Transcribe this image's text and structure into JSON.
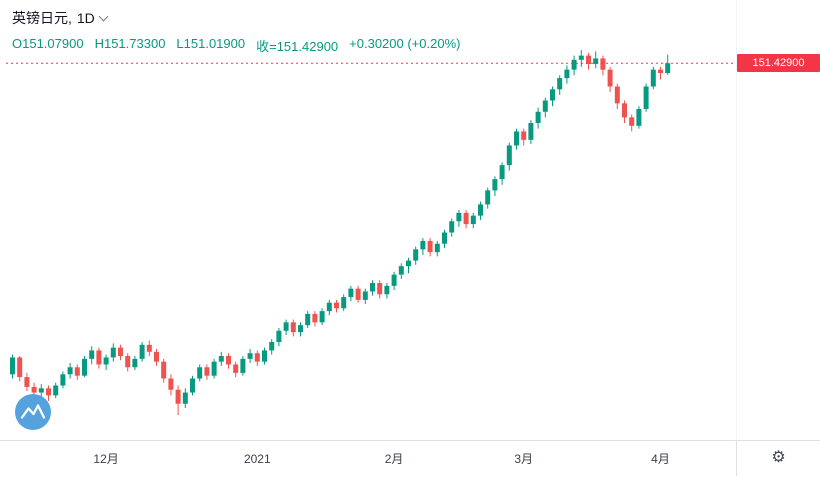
{
  "header": {
    "symbol": "英镑日元",
    "separator": ",",
    "interval": "1D",
    "ohlc_tokens": [
      "O151.07900",
      "H151.73300",
      "L151.01900",
      "收=151.42900",
      "+0.30200 (+0.20%)"
    ]
  },
  "price_axis": {
    "last_price_label": "151.42900"
  },
  "icons": {
    "gear": "⚙"
  },
  "brand": {
    "logo_bg": "#54a3de",
    "logo_glyph": "#ffffff"
  },
  "chart_data": {
    "type": "candlestick",
    "title": "英镑日元, 1D",
    "interval": "1D",
    "last_price": 151.429,
    "open": 151.079,
    "high": 151.733,
    "low": 151.019,
    "close": 151.429,
    "change": "+0.30200",
    "change_pct": "+0.20%",
    "y_range": [
      138.9,
      151.9
    ],
    "colors": {
      "up": "#089981",
      "down": "#ef5350",
      "last_price_line": "#f23645",
      "ohlc_text": "#089981"
    },
    "x_ticks": [
      {
        "i": 13,
        "label": "12月"
      },
      {
        "i": 34,
        "label": "2021"
      },
      {
        "i": 53,
        "label": "2月"
      },
      {
        "i": 71,
        "label": "3月"
      },
      {
        "i": 90,
        "label": "4月"
      }
    ],
    "candles": [
      [
        140.35,
        141.05,
        140.2,
        140.95
      ],
      [
        140.95,
        141.0,
        140.1,
        140.25
      ],
      [
        140.25,
        140.4,
        139.75,
        139.9
      ],
      [
        139.9,
        140.05,
        139.5,
        139.7
      ],
      [
        139.7,
        140.0,
        139.55,
        139.85
      ],
      [
        139.85,
        139.95,
        139.4,
        139.6
      ],
      [
        139.6,
        140.05,
        139.5,
        139.95
      ],
      [
        139.95,
        140.45,
        139.85,
        140.35
      ],
      [
        140.35,
        140.75,
        140.2,
        140.6
      ],
      [
        140.6,
        140.7,
        140.15,
        140.3
      ],
      [
        140.3,
        141.0,
        140.25,
        140.9
      ],
      [
        140.9,
        141.35,
        140.7,
        141.2
      ],
      [
        141.2,
        141.3,
        140.55,
        140.7
      ],
      [
        140.7,
        141.05,
        140.5,
        140.95
      ],
      [
        140.95,
        141.45,
        140.8,
        141.3
      ],
      [
        141.3,
        141.4,
        140.85,
        141.0
      ],
      [
        141.0,
        141.1,
        140.45,
        140.6
      ],
      [
        140.6,
        141.0,
        140.5,
        140.9
      ],
      [
        140.9,
        141.5,
        140.8,
        141.4
      ],
      [
        141.4,
        141.55,
        141.0,
        141.15
      ],
      [
        141.15,
        141.25,
        140.65,
        140.8
      ],
      [
        140.8,
        140.9,
        140.05,
        140.2
      ],
      [
        140.2,
        140.35,
        139.6,
        139.8
      ],
      [
        139.8,
        139.95,
        138.9,
        139.3
      ],
      [
        139.3,
        139.85,
        139.15,
        139.7
      ],
      [
        139.7,
        140.3,
        139.6,
        140.2
      ],
      [
        140.2,
        140.7,
        140.1,
        140.6
      ],
      [
        140.6,
        140.7,
        140.15,
        140.3
      ],
      [
        140.3,
        140.9,
        140.2,
        140.8
      ],
      [
        140.8,
        141.15,
        140.65,
        141.0
      ],
      [
        141.0,
        141.1,
        140.55,
        140.7
      ],
      [
        140.7,
        140.8,
        140.25,
        140.4
      ],
      [
        140.4,
        141.0,
        140.3,
        140.9
      ],
      [
        140.9,
        141.25,
        140.75,
        141.1
      ],
      [
        141.1,
        141.2,
        140.65,
        140.8
      ],
      [
        140.8,
        141.3,
        140.7,
        141.2
      ],
      [
        141.2,
        141.6,
        141.05,
        141.5
      ],
      [
        141.5,
        142.0,
        141.35,
        141.9
      ],
      [
        141.9,
        142.3,
        141.75,
        142.2
      ],
      [
        142.2,
        142.3,
        141.7,
        141.85
      ],
      [
        141.85,
        142.2,
        141.7,
        142.1
      ],
      [
        142.1,
        142.6,
        142.0,
        142.5
      ],
      [
        142.5,
        142.6,
        142.05,
        142.2
      ],
      [
        142.2,
        142.7,
        142.1,
        142.6
      ],
      [
        142.6,
        143.0,
        142.45,
        142.9
      ],
      [
        142.9,
        143.0,
        142.55,
        142.7
      ],
      [
        142.7,
        143.2,
        142.6,
        143.1
      ],
      [
        143.1,
        143.5,
        142.95,
        143.4
      ],
      [
        143.4,
        143.5,
        142.9,
        143.0
      ],
      [
        143.0,
        143.4,
        142.85,
        143.3
      ],
      [
        143.3,
        143.7,
        143.15,
        143.6
      ],
      [
        143.6,
        143.7,
        143.05,
        143.2
      ],
      [
        143.2,
        143.6,
        143.05,
        143.5
      ],
      [
        143.5,
        144.0,
        143.35,
        143.9
      ],
      [
        143.9,
        144.3,
        143.75,
        144.2
      ],
      [
        144.2,
        144.5,
        143.95,
        144.4
      ],
      [
        144.4,
        144.9,
        144.25,
        144.8
      ],
      [
        144.8,
        145.2,
        144.6,
        145.1
      ],
      [
        145.1,
        145.2,
        144.55,
        144.7
      ],
      [
        144.7,
        145.1,
        144.55,
        145.0
      ],
      [
        145.0,
        145.5,
        144.85,
        145.4
      ],
      [
        145.4,
        145.9,
        145.25,
        145.8
      ],
      [
        145.8,
        146.2,
        145.6,
        146.1
      ],
      [
        146.1,
        146.2,
        145.55,
        145.7
      ],
      [
        145.7,
        146.1,
        145.55,
        146.0
      ],
      [
        146.0,
        146.5,
        145.85,
        146.4
      ],
      [
        146.4,
        147.0,
        146.25,
        146.9
      ],
      [
        146.9,
        147.4,
        146.7,
        147.3
      ],
      [
        147.3,
        147.9,
        147.1,
        147.8
      ],
      [
        147.8,
        148.6,
        147.6,
        148.5
      ],
      [
        148.5,
        149.1,
        148.35,
        149.0
      ],
      [
        149.0,
        149.1,
        148.5,
        148.7
      ],
      [
        148.7,
        149.4,
        148.55,
        149.3
      ],
      [
        149.3,
        149.85,
        149.1,
        149.7
      ],
      [
        149.7,
        150.2,
        149.5,
        150.1
      ],
      [
        150.1,
        150.6,
        149.9,
        150.5
      ],
      [
        150.5,
        151.0,
        150.3,
        150.9
      ],
      [
        150.9,
        151.35,
        150.7,
        151.2
      ],
      [
        151.2,
        151.7,
        151.0,
        151.55
      ],
      [
        151.55,
        151.9,
        151.3,
        151.7
      ],
      [
        151.7,
        151.8,
        151.2,
        151.4
      ],
      [
        151.4,
        151.85,
        151.25,
        151.6
      ],
      [
        151.6,
        151.7,
        151.0,
        151.2
      ],
      [
        151.2,
        151.3,
        150.4,
        150.6
      ],
      [
        150.6,
        150.7,
        149.8,
        150.0
      ],
      [
        150.0,
        150.1,
        149.3,
        149.5
      ],
      [
        149.5,
        149.6,
        149.0,
        149.2
      ],
      [
        149.2,
        149.9,
        149.1,
        149.8
      ],
      [
        149.8,
        150.7,
        149.7,
        150.6
      ],
      [
        150.6,
        151.3,
        150.5,
        151.2
      ],
      [
        151.2,
        151.3,
        150.85,
        151.08
      ],
      [
        151.079,
        151.733,
        151.019,
        151.429
      ]
    ]
  }
}
